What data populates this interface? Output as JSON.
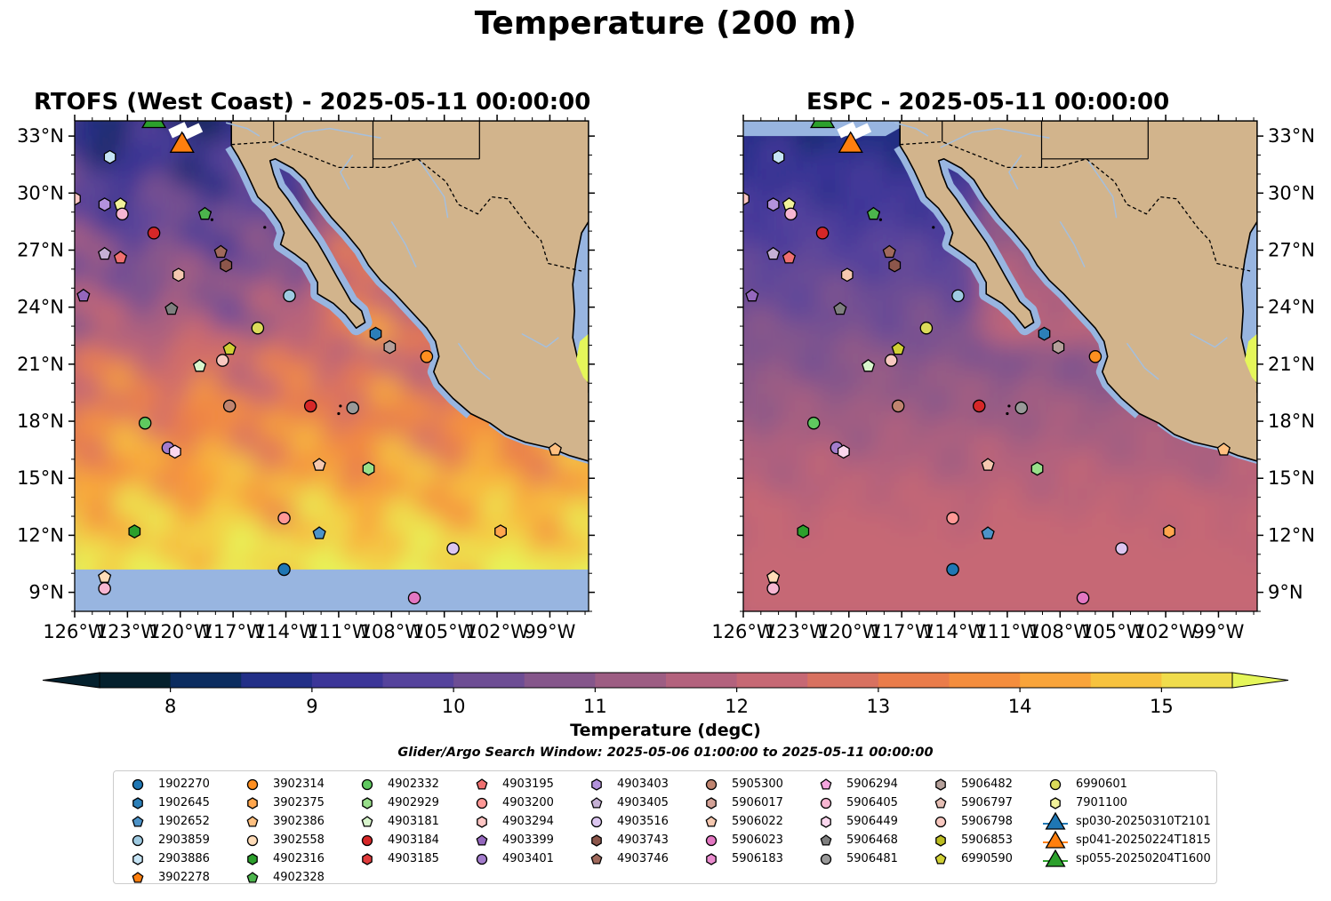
{
  "figure": {
    "title": "Temperature (200 m)",
    "left_panel_title": "RTOFS (West Coast) - 2025-05-11 00:00:00",
    "right_panel_title": "ESPC - 2025-05-11 00:00:00",
    "lat_ticks": [
      "33°N",
      "30°N",
      "27°N",
      "24°N",
      "21°N",
      "18°N",
      "15°N",
      "12°N",
      "9°N"
    ],
    "lon_ticks": [
      "126°W",
      "123°W",
      "120°W",
      "117°W",
      "114°W",
      "111°W",
      "108°W",
      "105°W",
      "102°W",
      "99°W"
    ],
    "extent": {
      "lon_min": -126,
      "lon_max": -96.8,
      "lat_min": 8,
      "lat_max": 33.8
    }
  },
  "colorbar": {
    "label": "Temperature (degC)",
    "ticks": [
      "8",
      "9",
      "10",
      "11",
      "12",
      "13",
      "14",
      "15"
    ],
    "min": 7.5,
    "max": 15.5,
    "step": 0.5,
    "colors": [
      "#04202d",
      "#0b2c5f",
      "#222f87",
      "#3c3698",
      "#55439c",
      "#6d4d94",
      "#85568b",
      "#9d5d83",
      "#b3627d",
      "#c66874",
      "#d87160",
      "#ea7c4a",
      "#f48d3d",
      "#f9a43a",
      "#f7c23e",
      "#f0dc4c"
    ],
    "extend_low_color": "#04202d",
    "extend_high_color": "#e5f65a"
  },
  "search_window": "Glider/Argo Search Window: 2025-05-06 01:00:00 to 2025-05-11 00:00:00",
  "map_colors": {
    "land": "#d2b48c",
    "ocean_mask": "#98b5e0",
    "rivers": "#a5bfdd"
  },
  "legend": {
    "columns": [
      [
        {
          "label": "1902270",
          "marker": "circle",
          "color": "#1f77b4"
        },
        {
          "label": "1902645",
          "marker": "hexagon",
          "color": "#2c7fb8"
        },
        {
          "label": "1902652",
          "marker": "pentagon",
          "color": "#4d93c8"
        },
        {
          "label": "2903859",
          "marker": "circle",
          "color": "#9ecae1"
        },
        {
          "label": "2903886",
          "marker": "hexagon",
          "color": "#c6e4f5"
        },
        {
          "label": "3902278",
          "marker": "pentagon",
          "color": "#ff7f0e"
        }
      ],
      [
        {
          "label": "3902314",
          "marker": "circle",
          "color": "#ff8f20"
        },
        {
          "label": "3902375",
          "marker": "hexagon",
          "color": "#ffa64d"
        },
        {
          "label": "3902386",
          "marker": "pentagon",
          "color": "#ffc080"
        },
        {
          "label": "3902558",
          "marker": "circle",
          "color": "#ffdcb8"
        },
        {
          "label": "4902316",
          "marker": "hexagon",
          "color": "#2ca02c"
        },
        {
          "label": "4902328",
          "marker": "pentagon",
          "color": "#4cb44c"
        }
      ],
      [
        {
          "label": "4902332",
          "marker": "circle",
          "color": "#5fc95f"
        },
        {
          "label": "4902929",
          "marker": "hexagon",
          "color": "#98df8a"
        },
        {
          "label": "4903181",
          "marker": "pentagon",
          "color": "#d8f5cc"
        },
        {
          "label": "4903184",
          "marker": "circle",
          "color": "#d62728"
        },
        {
          "label": "4903185",
          "marker": "hexagon",
          "color": "#e03c3c"
        }
      ],
      [
        {
          "label": "4903195",
          "marker": "pentagon",
          "color": "#f07070"
        },
        {
          "label": "4903200",
          "marker": "circle",
          "color": "#ff9896"
        },
        {
          "label": "4903294",
          "marker": "hexagon",
          "color": "#ffc6c4"
        },
        {
          "label": "4903399",
          "marker": "pentagon",
          "color": "#9467bd"
        },
        {
          "label": "4903401",
          "marker": "circle",
          "color": "#a37ccc"
        }
      ],
      [
        {
          "label": "4903403",
          "marker": "hexagon",
          "color": "#b392dc"
        },
        {
          "label": "4903405",
          "marker": "pentagon",
          "color": "#c5b0d5"
        },
        {
          "label": "4903516",
          "marker": "circle",
          "color": "#dcc6f0"
        },
        {
          "label": "4903743",
          "marker": "hexagon",
          "color": "#8c564b"
        },
        {
          "label": "4903746",
          "marker": "pentagon",
          "color": "#a0695c"
        }
      ],
      [
        {
          "label": "5905300",
          "marker": "circle",
          "color": "#c0846f"
        },
        {
          "label": "5906017",
          "marker": "hexagon",
          "color": "#d4a297"
        },
        {
          "label": "5906022",
          "marker": "pentagon",
          "color": "#f5c8b0"
        },
        {
          "label": "5906023",
          "marker": "circle",
          "color": "#e377c2"
        },
        {
          "label": "5906183",
          "marker": "hexagon",
          "color": "#ea8ccf"
        }
      ],
      [
        {
          "label": "5906294",
          "marker": "pentagon",
          "color": "#f4a5de"
        },
        {
          "label": "5906405",
          "marker": "circle",
          "color": "#f7b6d2"
        },
        {
          "label": "5906449",
          "marker": "hexagon",
          "color": "#fbd7ee"
        },
        {
          "label": "5906468",
          "marker": "pentagon",
          "color": "#7f7f7f"
        },
        {
          "label": "5906481",
          "marker": "circle",
          "color": "#999999"
        }
      ],
      [
        {
          "label": "5906482",
          "marker": "hexagon",
          "color": "#b5a09a"
        },
        {
          "label": "5906797",
          "marker": "pentagon",
          "color": "#e6bfb5"
        },
        {
          "label": "5906798",
          "marker": "circle",
          "color": "#f8c8c0"
        },
        {
          "label": "5906853",
          "marker": "hexagon",
          "color": "#bcbd22"
        },
        {
          "label": "6990590",
          "marker": "pentagon",
          "color": "#d0d035"
        }
      ],
      [
        {
          "label": "6990601",
          "marker": "circle",
          "color": "#dbdb5a"
        },
        {
          "label": "7901100",
          "marker": "hexagon",
          "color": "#f2f29a"
        },
        {
          "label": "sp030-20250310T2101",
          "marker": "triangle",
          "color": "#1f77b4"
        },
        {
          "label": "sp041-20250224T1815",
          "marker": "triangle",
          "color": "#ff7f0e"
        },
        {
          "label": "sp055-20250204T1600",
          "marker": "triangle",
          "color": "#2ca02c"
        }
      ]
    ]
  },
  "observations": [
    {
      "lon": -124.0,
      "lat": 31.9,
      "marker": "hexagon",
      "color": "#c6e4f5"
    },
    {
      "lon": -126.0,
      "lat": 29.7,
      "marker": "hexagon",
      "color": "#ffc6c4"
    },
    {
      "lon": -124.3,
      "lat": 29.4,
      "marker": "hexagon",
      "color": "#b392dc"
    },
    {
      "lon": -123.4,
      "lat": 29.4,
      "marker": "pentagon",
      "color": "#f2f29a"
    },
    {
      "lon": -123.3,
      "lat": 28.9,
      "marker": "circle",
      "color": "#f7b6d2"
    },
    {
      "lon": -121.5,
      "lat": 27.9,
      "marker": "circle",
      "color": "#d62728"
    },
    {
      "lon": -118.6,
      "lat": 28.9,
      "marker": "pentagon",
      "color": "#4cb44c"
    },
    {
      "lon": -124.3,
      "lat": 26.8,
      "marker": "pentagon",
      "color": "#c5b0d5"
    },
    {
      "lon": -123.4,
      "lat": 26.6,
      "marker": "pentagon",
      "color": "#f07070"
    },
    {
      "lon": -117.7,
      "lat": 26.9,
      "marker": "pentagon",
      "color": "#a0695c"
    },
    {
      "lon": -117.4,
      "lat": 26.2,
      "marker": "hexagon",
      "color": "#8c564b"
    },
    {
      "lon": -120.1,
      "lat": 25.7,
      "marker": "hexagon",
      "color": "#f5c8b0"
    },
    {
      "lon": -125.5,
      "lat": 24.6,
      "marker": "pentagon",
      "color": "#9467bd"
    },
    {
      "lon": -113.8,
      "lat": 24.6,
      "marker": "circle",
      "color": "#9ecae1"
    },
    {
      "lon": -120.5,
      "lat": 23.9,
      "marker": "pentagon",
      "color": "#7f7f7f"
    },
    {
      "lon": -115.6,
      "lat": 22.9,
      "marker": "circle",
      "color": "#dbdb5a"
    },
    {
      "lon": -108.9,
      "lat": 22.6,
      "marker": "hexagon",
      "color": "#2c7fb8"
    },
    {
      "lon": -108.1,
      "lat": 21.9,
      "marker": "hexagon",
      "color": "#b5a09a"
    },
    {
      "lon": -117.2,
      "lat": 21.8,
      "marker": "pentagon",
      "color": "#d0d035"
    },
    {
      "lon": -106.0,
      "lat": 21.4,
      "marker": "circle",
      "color": "#ff8f20"
    },
    {
      "lon": -118.9,
      "lat": 20.9,
      "marker": "pentagon",
      "color": "#d8f5cc"
    },
    {
      "lon": -117.6,
      "lat": 21.2,
      "marker": "circle",
      "color": "#f8c8c0"
    },
    {
      "lon": -117.2,
      "lat": 18.8,
      "marker": "circle",
      "color": "#c0846f"
    },
    {
      "lon": -112.6,
      "lat": 18.8,
      "marker": "circle",
      "color": "#d62728"
    },
    {
      "lon": -110.2,
      "lat": 18.7,
      "marker": "circle",
      "color": "#999999"
    },
    {
      "lon": -122.0,
      "lat": 17.9,
      "marker": "circle",
      "color": "#5fc95f"
    },
    {
      "lon": -120.7,
      "lat": 16.6,
      "marker": "circle",
      "color": "#a37ccc"
    },
    {
      "lon": -120.3,
      "lat": 16.4,
      "marker": "hexagon",
      "color": "#fbd7ee"
    },
    {
      "lon": -112.1,
      "lat": 15.7,
      "marker": "pentagon",
      "color": "#f5c8b0"
    },
    {
      "lon": -109.3,
      "lat": 15.5,
      "marker": "hexagon",
      "color": "#98df8a"
    },
    {
      "lon": -98.7,
      "lat": 16.5,
      "marker": "pentagon",
      "color": "#ffc080"
    },
    {
      "lon": -122.6,
      "lat": 12.2,
      "marker": "hexagon",
      "color": "#2ca02c"
    },
    {
      "lon": -114.1,
      "lat": 12.9,
      "marker": "circle",
      "color": "#ff9896"
    },
    {
      "lon": -112.1,
      "lat": 12.1,
      "marker": "pentagon",
      "color": "#4d93c8"
    },
    {
      "lon": -101.8,
      "lat": 12.2,
      "marker": "hexagon",
      "color": "#ffa64d"
    },
    {
      "lon": -104.5,
      "lat": 11.3,
      "marker": "circle",
      "color": "#dcc6f0"
    },
    {
      "lon": -114.1,
      "lat": 10.2,
      "marker": "circle",
      "color": "#1f77b4"
    },
    {
      "lon": -124.3,
      "lat": 9.8,
      "marker": "pentagon",
      "color": "#ffdcb8"
    },
    {
      "lon": -124.3,
      "lat": 9.2,
      "marker": "circle",
      "color": "#f7b6d2"
    },
    {
      "lon": -106.7,
      "lat": 8.7,
      "marker": "circle",
      "color": "#e377c2"
    },
    {
      "lon": -119.9,
      "lat": 32.5,
      "marker": "triangle",
      "color": "#ff7f0e"
    },
    {
      "lon": -121.5,
      "lat": 33.8,
      "marker": "triangle",
      "color": "#2ca02c"
    }
  ]
}
